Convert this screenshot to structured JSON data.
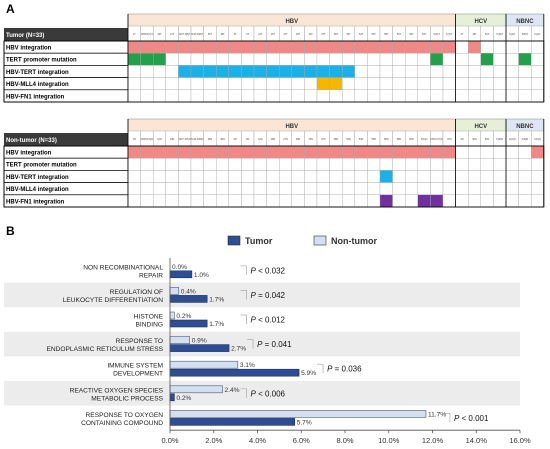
{
  "panel_a": {
    "letter": "A",
    "groups": [
      {
        "label": "HBV",
        "count": 26,
        "color": "#fbe6d6"
      },
      {
        "label": "HCV",
        "count": 4,
        "color": "#e6efd8"
      },
      {
        "label": "NBNC",
        "count": 3,
        "color": "#dde6f2"
      }
    ],
    "colors": {
      "hbv": "#f08888",
      "tert": "#22a04a",
      "mll4": "#1ab0e8",
      "fn1": "#7030a0",
      "tert_int": "#f5b700"
    },
    "tumor": {
      "title": "Tumor (N=33)",
      "sample_ids": [
        "1T",
        "N/95 R(A)T",
        "10T",
        "14T",
        "N/27 J(H)T",
        "N/43 K(B)T",
        "36T",
        "46T",
        "3T",
        "6T",
        "12T",
        "18T",
        "27T",
        "29T",
        "33T",
        "37T",
        "48T",
        "52T",
        "53T",
        "56T",
        "58T",
        "59T",
        "60T",
        "63T",
        "K(K)T",
        "K(Y)T",
        "4T",
        "40T",
        "51T",
        "K(R)T",
        "K(A)T",
        "K(B)T",
        "K(C)T"
      ],
      "rows": [
        {
          "label": "HBV integration",
          "key": "hbv",
          "cells": [
            0,
            1,
            2,
            3,
            4,
            5,
            6,
            7,
            8,
            9,
            10,
            11,
            12,
            13,
            14,
            15,
            16,
            17,
            18,
            19,
            20,
            21,
            22,
            23,
            24,
            25,
            27
          ]
        },
        {
          "label": "TERT promoter mutation",
          "key": "tert",
          "cells": [
            0,
            1,
            2,
            24,
            28,
            31
          ]
        },
        {
          "label": "HBV-TERT integration",
          "key": "mll4",
          "cells": [
            4,
            5,
            6,
            7,
            8,
            9,
            10,
            11,
            12,
            13,
            14,
            15,
            16,
            17
          ]
        },
        {
          "label": "HBV-MLL4 integration",
          "key": "tert_int",
          "cells": [
            15,
            16
          ]
        },
        {
          "label": "HBV-FN1 integration",
          "key": "fn1",
          "cells": []
        }
      ]
    },
    "nontumor": {
      "title": "Non-tumor (N=33)",
      "sample_ids": [
        "1N",
        "N/95 R(A)N",
        "10N",
        "14N",
        "N/27 J(H)N",
        "N/43 K(B)N",
        "36N",
        "46N",
        "3N",
        "6N",
        "12N",
        "18N",
        "27N",
        "29N",
        "33N",
        "37N",
        "48N",
        "52N",
        "53N",
        "56N",
        "58N",
        "59N",
        "60N",
        "K(K)N",
        "N/64 K(T)N",
        "37N",
        "4N",
        "40N",
        "51N",
        "K(R)N",
        "K(A)N",
        "K(B)N",
        "K(C)N"
      ],
      "rows": [
        {
          "label": "HBV integration",
          "key": "hbv",
          "cells": [
            0,
            1,
            2,
            3,
            4,
            5,
            6,
            7,
            8,
            9,
            10,
            11,
            12,
            13,
            14,
            15,
            16,
            17,
            18,
            19,
            20,
            21,
            22,
            23,
            24,
            25,
            32
          ]
        },
        {
          "label": "TERT promoter mutation",
          "key": "tert",
          "cells": []
        },
        {
          "label": "HBV-TERT integration",
          "key": "mll4",
          "cells": [
            20
          ]
        },
        {
          "label": "HBV-MLL4 integration",
          "key": "tert_int",
          "cells": []
        },
        {
          "label": "HBV-FN1 integration",
          "key": "fn1",
          "cells": [
            20,
            23,
            24
          ]
        }
      ]
    }
  },
  "panel_b": {
    "letter": "B",
    "chart_data": {
      "type": "bar",
      "orientation": "horizontal",
      "categories": [
        "NON RECOMBINATIONAL REPAIR",
        "REGULATION OF LEUKOCYTE DIFFERENTIATION",
        "HISTONE BINDING",
        "RESPONSE TO ENDOPLASMIC RETICULUM STRESS",
        "IMMUNE SYSTEM DEVELOPMENT",
        "REACTIVE OXYGEN SPECIES METABOLIC PROCESS",
        "RESPONSE TO OXYGEN CONTAINING COMPOUND"
      ],
      "category_lines": [
        [
          "NON RECOMBINATIONAL",
          "REPAIR"
        ],
        [
          "REGULATION OF",
          "LEUKOCYTE DIFFERENTIATION"
        ],
        [
          "HISTONE",
          "BINDING"
        ],
        [
          "RESPONSE TO",
          "ENDOPLASMIC RETICULUM STRESS"
        ],
        [
          "IMMUNE SYSTEM",
          "DEVELOPMENT"
        ],
        [
          "REACTIVE OXYGEN SPECIES",
          "METABOLIC PROCESS"
        ],
        [
          "RESPONSE TO OXYGEN",
          "CONTAINING COMPOUND"
        ]
      ],
      "series": [
        {
          "name": "Tumor",
          "values": [
            1.0,
            1.7,
            1.7,
            2.7,
            5.9,
            0.2,
            5.7
          ],
          "labels": [
            "1.0%",
            "1.7%",
            "1.7%",
            "2.7%",
            "5.9%",
            "0.2%",
            "5.7%"
          ],
          "color": "#2e4d92"
        },
        {
          "name": "Non-tumor",
          "values": [
            0.0,
            0.4,
            0.2,
            0.9,
            3.1,
            2.4,
            11.7
          ],
          "labels": [
            "0.0%",
            "0.4%",
            "0.2%",
            "0.9%",
            "3.1%",
            "2.4%",
            "11.7%"
          ],
          "color": "#d4dff0"
        }
      ],
      "pvalues": [
        "< 0.032",
        "= 0.042",
        "< 0.012",
        "= 0.041",
        "= 0.036",
        "< 0.006",
        "< 0.001"
      ],
      "p_symbol": "P",
      "xlim": [
        0,
        16
      ],
      "xticks": [
        "0.0%",
        "2.0%",
        "4.0%",
        "6.0%",
        "8.0%",
        "10.0%",
        "12.0%",
        "14.0%",
        "16.0%"
      ],
      "legend_position": "top",
      "grid": false
    }
  }
}
